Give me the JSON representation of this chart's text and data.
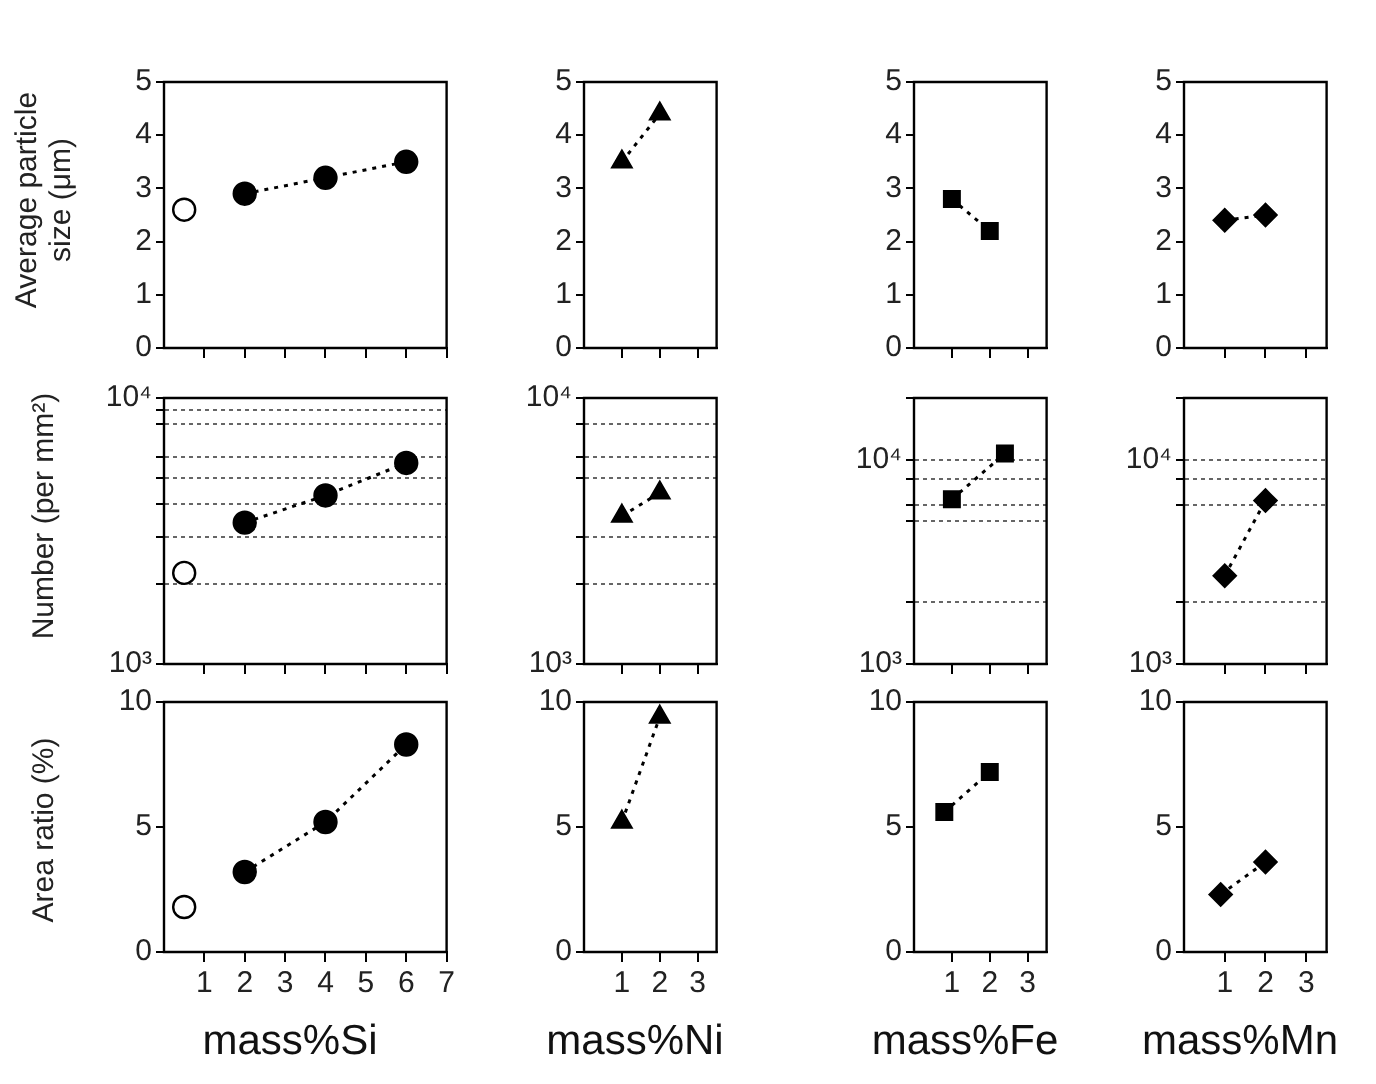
{
  "chart_data": [
    {
      "type": "line",
      "ylabel": "Average particle size (μm)",
      "xlim": [
        0,
        7
      ],
      "xticks": [
        1,
        2,
        3,
        4,
        5,
        6,
        7
      ],
      "ylim": [
        0,
        5
      ],
      "yticks": [
        0,
        1,
        2,
        3,
        4,
        5
      ],
      "tick_labels": "y",
      "marker": "circle",
      "line_style": "dotted",
      "series": [
        {
          "color": "#ffffff",
          "x": [
            0.5
          ],
          "values": [
            2.6
          ]
        },
        {
          "color": "#000000",
          "x": [
            2,
            4,
            6
          ],
          "values": [
            2.9,
            3.2,
            3.5
          ]
        }
      ]
    },
    {
      "type": "line",
      "xlim": [
        0,
        3.5
      ],
      "xticks": [
        1,
        2,
        3
      ],
      "ylim": [
        0,
        5
      ],
      "yticks": [
        0,
        1,
        2,
        3,
        4,
        5
      ],
      "tick_labels": "y",
      "marker": "triangle",
      "line_style": "dotted",
      "series": [
        {
          "color": "#000000",
          "x": [
            1,
            2
          ],
          "values": [
            3.5,
            4.4
          ]
        }
      ]
    },
    {
      "type": "line",
      "xlim": [
        0,
        3.5
      ],
      "xticks": [
        1,
        2,
        3
      ],
      "ylim": [
        0,
        5
      ],
      "yticks": [
        0,
        1,
        2,
        3,
        4,
        5
      ],
      "tick_labels": "y",
      "marker": "square",
      "line_style": "dotted",
      "series": [
        {
          "color": "#000000",
          "x": [
            1,
            2
          ],
          "values": [
            2.8,
            2.2
          ]
        }
      ]
    },
    {
      "type": "line",
      "xlim": [
        0,
        3.5
      ],
      "xticks": [
        1,
        2,
        3
      ],
      "ylim": [
        0,
        5
      ],
      "yticks": [
        0,
        1,
        2,
        3,
        4,
        5
      ],
      "tick_labels": "y",
      "marker": "diamond",
      "line_style": "dotted",
      "series": [
        {
          "color": "#000000",
          "x": [
            1,
            2
          ],
          "values": [
            2.4,
            2.5
          ]
        }
      ]
    },
    {
      "type": "line",
      "ylabel": "Number (per mm²)",
      "log": "y",
      "grid": "y",
      "xlim": [
        0,
        7
      ],
      "xticks": [
        1,
        2,
        3,
        4,
        5,
        6,
        7
      ],
      "ylim": [
        1000,
        10000
      ],
      "yticks": [
        {
          "value": 1000,
          "label": "10³"
        },
        {
          "value": 2000,
          "label": null
        },
        {
          "value": 3000,
          "label": null
        },
        {
          "value": 4000,
          "label": null
        },
        {
          "value": 5000,
          "label": null
        },
        {
          "value": 6000,
          "label": null
        },
        {
          "value": 8000,
          "label": null
        },
        {
          "value": 9000,
          "label": null
        },
        {
          "value": 10000,
          "label": "10⁴"
        }
      ],
      "tick_labels": "y",
      "marker": "circle",
      "line_style": "dotted",
      "series": [
        {
          "color": "#ffffff",
          "x": [
            0.5
          ],
          "values": [
            2200
          ]
        },
        {
          "color": "#000000",
          "x": [
            2,
            4,
            6
          ],
          "values": [
            3400,
            4300,
            5700
          ]
        }
      ]
    },
    {
      "type": "line",
      "log": "y",
      "grid": "y",
      "xlim": [
        0,
        3.5
      ],
      "xticks": [
        1,
        2,
        3
      ],
      "ylim": [
        1000,
        10000
      ],
      "yticks": [
        {
          "value": 1000,
          "label": "10³"
        },
        {
          "value": 2000,
          "label": null
        },
        {
          "value": 3000,
          "label": null
        },
        {
          "value": 5000,
          "label": null
        },
        {
          "value": 6000,
          "label": null
        },
        {
          "value": 8000,
          "label": null
        },
        {
          "value": 10000,
          "label": "10⁴"
        }
      ],
      "tick_labels": "y",
      "marker": "triangle",
      "line_style": "dotted",
      "series": [
        {
          "color": "#000000",
          "x": [
            1,
            2
          ],
          "values": [
            3600,
            4400
          ]
        }
      ]
    },
    {
      "type": "line",
      "log": "y",
      "grid": "y",
      "xlim": [
        0,
        3.5
      ],
      "xticks": [
        1,
        2,
        3
      ],
      "ylim": [
        1000,
        20000
      ],
      "yticks": [
        {
          "value": 1000,
          "label": "10³"
        },
        {
          "value": 2000,
          "label": null
        },
        {
          "value": 5000,
          "label": null
        },
        {
          "value": 6000,
          "label": null
        },
        {
          "value": 8000,
          "label": null
        },
        {
          "value": 10000,
          "label": "10⁴"
        },
        {
          "value": 20000,
          "label": null
        }
      ],
      "tick_labels": "y",
      "marker": "square",
      "line_style": "dotted",
      "series": [
        {
          "color": "#000000",
          "x": [
            1,
            2.4
          ],
          "values": [
            6400,
            10700
          ]
        }
      ]
    },
    {
      "type": "line",
      "log": "y",
      "grid": "y",
      "xlim": [
        0,
        3.5
      ],
      "xticks": [
        1,
        2,
        3
      ],
      "ylim": [
        1000,
        20000
      ],
      "yticks": [
        {
          "value": 1000,
          "label": "10³"
        },
        {
          "value": 2000,
          "label": null
        },
        {
          "value": 6000,
          "label": null
        },
        {
          "value": 8000,
          "label": null
        },
        {
          "value": 10000,
          "label": "10⁴"
        },
        {
          "value": 20000,
          "label": null
        }
      ],
      "tick_labels": "y",
      "marker": "diamond",
      "line_style": "dotted",
      "series": [
        {
          "color": "#000000",
          "x": [
            1,
            2
          ],
          "values": [
            2700,
            6300
          ]
        }
      ]
    },
    {
      "type": "line",
      "ylabel": "Area ratio (%)",
      "xlabel": "mass%Si",
      "xlim": [
        0,
        7
      ],
      "xticks": [
        1,
        2,
        3,
        4,
        5,
        6,
        7
      ],
      "ylim": [
        0,
        10
      ],
      "yticks": [
        0,
        5,
        10
      ],
      "marker": "circle",
      "line_style": "dotted",
      "series": [
        {
          "color": "#ffffff",
          "x": [
            0.5
          ],
          "values": [
            1.8
          ]
        },
        {
          "color": "#000000",
          "x": [
            2,
            4,
            6
          ],
          "values": [
            3.2,
            5.2,
            8.3
          ]
        }
      ]
    },
    {
      "type": "line",
      "xlabel": "mass%Ni",
      "xlim": [
        0,
        3.5
      ],
      "xticks": [
        1,
        2,
        3
      ],
      "ylim": [
        0,
        10
      ],
      "yticks": [
        0,
        5,
        10
      ],
      "marker": "triangle",
      "line_style": "dotted",
      "series": [
        {
          "color": "#000000",
          "x": [
            1,
            2
          ],
          "values": [
            5.2,
            9.4
          ]
        }
      ]
    },
    {
      "type": "line",
      "xlabel": "mass%Fe",
      "xlim": [
        0,
        3.5
      ],
      "xticks": [
        1,
        2,
        3
      ],
      "ylim": [
        0,
        10
      ],
      "yticks": [
        0,
        5,
        10
      ],
      "marker": "square",
      "line_style": "dotted",
      "series": [
        {
          "color": "#000000",
          "x": [
            0.8,
            2
          ],
          "values": [
            5.6,
            7.2
          ]
        }
      ]
    },
    {
      "type": "line",
      "xlabel": "mass%Mn",
      "xlim": [
        0,
        3.5
      ],
      "xticks": [
        1,
        2,
        3
      ],
      "ylim": [
        0,
        10
      ],
      "yticks": [
        0,
        5,
        10
      ],
      "marker": "diamond",
      "line_style": "dotted",
      "series": [
        {
          "color": "#000000",
          "x": [
            0.9,
            2
          ],
          "values": [
            2.3,
            3.6
          ]
        }
      ]
    }
  ]
}
